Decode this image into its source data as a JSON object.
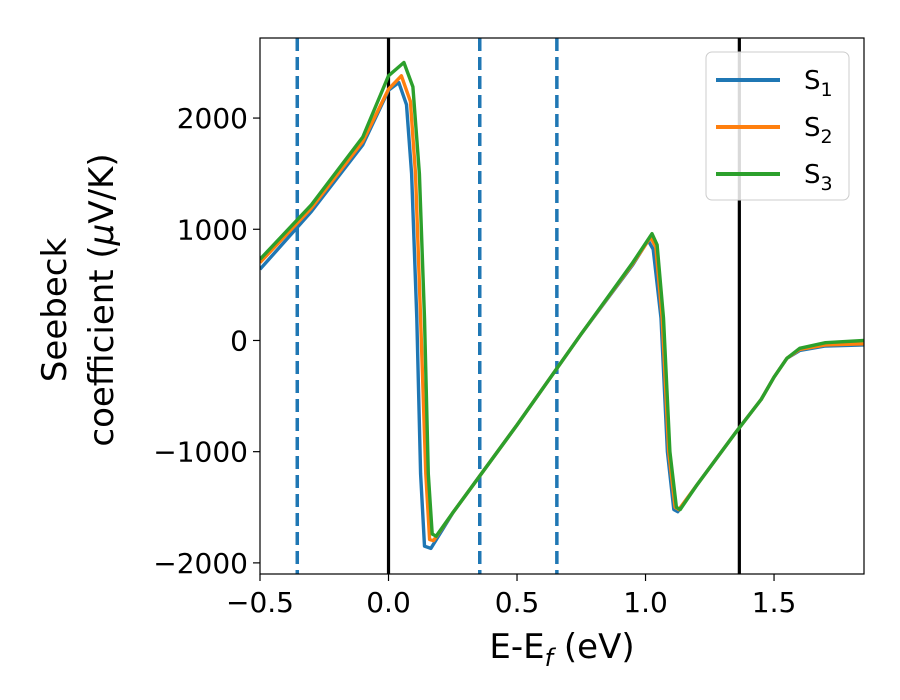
{
  "chart_data": {
    "type": "line",
    "xlabel": "E-E",
    "xlabel_sub": "f",
    "xlabel_unit": " (eV)",
    "ylabel_line1": "Seebeck",
    "ylabel_line2": "coefficient  (",
    "ylabel_mu": "μ",
    "ylabel_unit": "V/K)",
    "xlim": [
      -0.5,
      1.85
    ],
    "ylim": [
      -2100,
      2720
    ],
    "x_ticks": [
      -0.5,
      0.0,
      0.5,
      1.0,
      1.5
    ],
    "x_tick_labels": [
      "−0.5",
      "0.0",
      "0.5",
      "1.0",
      "1.5"
    ],
    "y_ticks": [
      -2000,
      -1000,
      0,
      1000,
      2000
    ],
    "y_tick_labels": [
      "−2000",
      "−1000",
      "0",
      "1000",
      "2000"
    ],
    "grid": false,
    "legend_position": "top-right",
    "vlines": [
      {
        "x": -0.355,
        "style": "dashed",
        "color": "#1f77b4"
      },
      {
        "x": 0.0,
        "style": "solid",
        "color": "#000000"
      },
      {
        "x": 0.355,
        "style": "dashed",
        "color": "#1f77b4"
      },
      {
        "x": 0.655,
        "style": "dashed",
        "color": "#1f77b4"
      },
      {
        "x": 1.365,
        "style": "solid",
        "color": "#000000"
      }
    ],
    "series": [
      {
        "name": "S",
        "sub": "1",
        "color": "#1f77b4",
        "points": [
          [
            -0.5,
            640
          ],
          [
            -0.3,
            1160
          ],
          [
            -0.1,
            1760
          ],
          [
            0.0,
            2250
          ],
          [
            0.04,
            2320
          ],
          [
            0.07,
            2120
          ],
          [
            0.09,
            1500
          ],
          [
            0.11,
            200
          ],
          [
            0.125,
            -1200
          ],
          [
            0.14,
            -1850
          ],
          [
            0.165,
            -1870
          ],
          [
            0.25,
            -1550
          ],
          [
            0.5,
            -760
          ],
          [
            0.75,
            60
          ],
          [
            0.95,
            680
          ],
          [
            1.01,
            900
          ],
          [
            1.03,
            820
          ],
          [
            1.06,
            200
          ],
          [
            1.085,
            -1000
          ],
          [
            1.11,
            -1520
          ],
          [
            1.125,
            -1540
          ],
          [
            1.2,
            -1300
          ],
          [
            1.35,
            -830
          ],
          [
            1.45,
            -530
          ],
          [
            1.5,
            -330
          ],
          [
            1.55,
            -160
          ],
          [
            1.6,
            -90
          ],
          [
            1.7,
            -50
          ],
          [
            1.85,
            -40
          ]
        ]
      },
      {
        "name": "S",
        "sub": "2",
        "color": "#ff7f0e",
        "points": [
          [
            -0.5,
            700
          ],
          [
            -0.3,
            1190
          ],
          [
            -0.1,
            1790
          ],
          [
            0.0,
            2260
          ],
          [
            0.05,
            2380
          ],
          [
            0.085,
            2150
          ],
          [
            0.105,
            1500
          ],
          [
            0.125,
            200
          ],
          [
            0.145,
            -1200
          ],
          [
            0.16,
            -1790
          ],
          [
            0.175,
            -1800
          ],
          [
            0.25,
            -1550
          ],
          [
            0.5,
            -760
          ],
          [
            0.75,
            60
          ],
          [
            0.95,
            690
          ],
          [
            1.02,
            930
          ],
          [
            1.04,
            840
          ],
          [
            1.065,
            200
          ],
          [
            1.09,
            -1000
          ],
          [
            1.115,
            -1500
          ],
          [
            1.13,
            -1520
          ],
          [
            1.2,
            -1300
          ],
          [
            1.35,
            -830
          ],
          [
            1.45,
            -530
          ],
          [
            1.5,
            -330
          ],
          [
            1.55,
            -160
          ],
          [
            1.6,
            -80
          ],
          [
            1.7,
            -40
          ],
          [
            1.85,
            -30
          ]
        ]
      },
      {
        "name": "S",
        "sub": "3",
        "color": "#2ca02c",
        "points": [
          [
            -0.5,
            730
          ],
          [
            -0.3,
            1220
          ],
          [
            -0.1,
            1830
          ],
          [
            0.0,
            2380
          ],
          [
            0.06,
            2500
          ],
          [
            0.095,
            2280
          ],
          [
            0.12,
            1500
          ],
          [
            0.14,
            200
          ],
          [
            0.155,
            -1200
          ],
          [
            0.17,
            -1740
          ],
          [
            0.185,
            -1760
          ],
          [
            0.25,
            -1550
          ],
          [
            0.5,
            -760
          ],
          [
            0.75,
            60
          ],
          [
            0.95,
            700
          ],
          [
            1.025,
            960
          ],
          [
            1.045,
            860
          ],
          [
            1.07,
            200
          ],
          [
            1.095,
            -1000
          ],
          [
            1.12,
            -1500
          ],
          [
            1.135,
            -1520
          ],
          [
            1.2,
            -1300
          ],
          [
            1.35,
            -830
          ],
          [
            1.45,
            -530
          ],
          [
            1.5,
            -330
          ],
          [
            1.55,
            -160
          ],
          [
            1.6,
            -70
          ],
          [
            1.7,
            -20
          ],
          [
            1.85,
            0
          ]
        ]
      }
    ]
  }
}
